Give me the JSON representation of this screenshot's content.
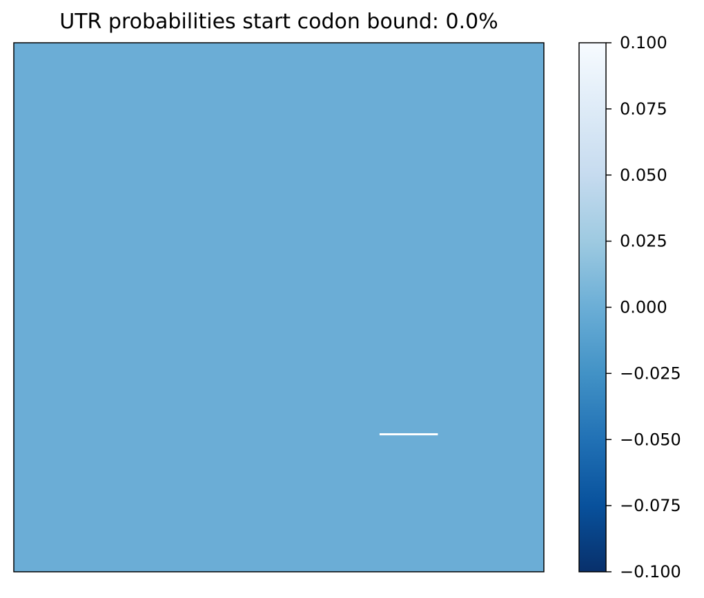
{
  "chart_data": {
    "type": "heatmap",
    "title": "UTR probabilities start codon bound: 0.0%",
    "xlabel": "",
    "ylabel": "",
    "xticks": [],
    "yticks": [],
    "grid": false,
    "legend": "none",
    "cell_value": 0.0,
    "cell_color": "#6badd6",
    "marker_color": "#ffffff",
    "marker_extent": {
      "x0": 0.69,
      "x1": 0.8,
      "y": 0.74
    },
    "colorbar": {
      "colormap": "Blues_r",
      "min": -0.1,
      "max": 0.1,
      "ticks": [
        0.1,
        0.075,
        0.05,
        0.025,
        0.0,
        -0.025,
        -0.05,
        -0.075,
        -0.1
      ],
      "tick_labels": [
        "0.100",
        "0.075",
        "0.050",
        "0.025",
        "0.000",
        "−0.025",
        "−0.050",
        "−0.075",
        "−0.100"
      ],
      "stops": [
        {
          "value": -0.1,
          "color": "#08306b"
        },
        {
          "value": -0.075,
          "color": "#08519c"
        },
        {
          "value": -0.05,
          "color": "#2171b5"
        },
        {
          "value": -0.025,
          "color": "#4292c6"
        },
        {
          "value": 0.0,
          "color": "#6baed6"
        },
        {
          "value": 0.025,
          "color": "#9ecae1"
        },
        {
          "value": 0.05,
          "color": "#c6dbef"
        },
        {
          "value": 0.075,
          "color": "#deebf7"
        },
        {
          "value": 0.1,
          "color": "#f7fbff"
        }
      ]
    }
  }
}
